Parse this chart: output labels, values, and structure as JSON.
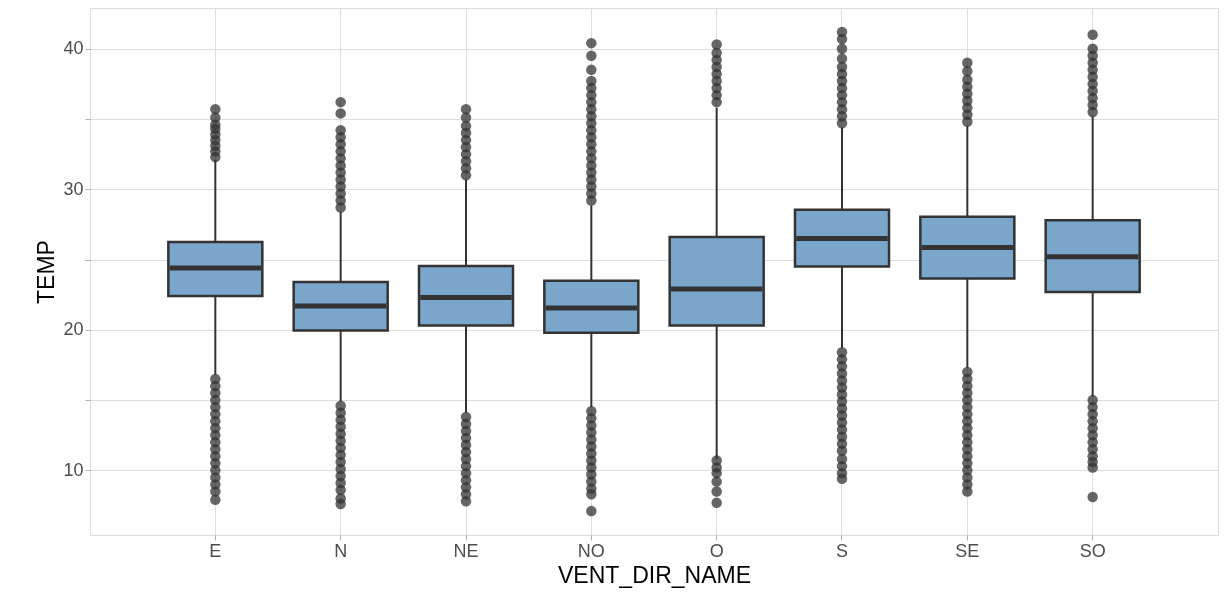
{
  "chart_data": {
    "type": "box",
    "xlabel": "VENT_DIR_NAME",
    "ylabel": "TEMP",
    "categories": [
      "E",
      "N",
      "NE",
      "NO",
      "O",
      "S",
      "SE",
      "SO"
    ],
    "ylim": [
      5.4,
      42.9
    ],
    "yticks": [
      {
        "value": 10,
        "label": "10"
      },
      {
        "value": 15,
        "label": null
      },
      {
        "value": 20,
        "label": "20"
      },
      {
        "value": 25,
        "label": null
      },
      {
        "value": 30,
        "label": "30"
      },
      {
        "value": 35,
        "label": null
      },
      {
        "value": 40,
        "label": "40"
      }
    ],
    "grid": true,
    "series": [
      {
        "color": "#7ba6cc",
        "boxes": [
          {
            "low": 16.8,
            "q1": 22.4,
            "median": 24.4,
            "q3": 26.25,
            "high": 32.1,
            "outliers": [
              32.3,
              32.7,
              33.1,
              33.5,
              33.9,
              34.3,
              34.6,
              35.1,
              35.7,
              16.5,
              16.0,
              15.5,
              15.0,
              14.5,
              14.0,
              13.5,
              13.0,
              12.5,
              12.0,
              11.5,
              11.0,
              10.5,
              10.0,
              9.5,
              9.0,
              8.5,
              7.9
            ]
          },
          {
            "low": 14.9,
            "q1": 19.95,
            "median": 21.7,
            "q3": 23.4,
            "high": 28.4,
            "outliers": [
              28.7,
              29.2,
              29.7,
              30.2,
              30.7,
              31.2,
              31.7,
              32.2,
              32.7,
              33.2,
              33.7,
              34.2,
              35.4,
              36.2,
              14.6,
              14.1,
              13.6,
              13.1,
              12.6,
              12.1,
              11.6,
              11.1,
              10.6,
              10.1,
              9.6,
              9.1,
              8.6,
              8.0,
              7.6
            ]
          },
          {
            "low": 14.1,
            "q1": 20.3,
            "median": 22.3,
            "q3": 24.55,
            "high": 30.7,
            "outliers": [
              31.0,
              31.5,
              32.0,
              32.5,
              33.0,
              33.5,
              34.0,
              34.5,
              35.1,
              35.7,
              13.8,
              13.3,
              12.8,
              12.3,
              11.8,
              11.3,
              10.8,
              10.3,
              9.8,
              9.3,
              8.8,
              8.3,
              7.8
            ]
          },
          {
            "low": 14.5,
            "q1": 19.8,
            "median": 21.55,
            "q3": 23.5,
            "high": 28.85,
            "outliers": [
              29.2,
              29.7,
              30.2,
              30.7,
              31.2,
              31.7,
              32.2,
              32.7,
              33.2,
              33.7,
              34.2,
              34.7,
              35.2,
              35.7,
              36.2,
              36.7,
              37.2,
              37.7,
              38.5,
              39.5,
              40.4,
              14.2,
              13.7,
              13.2,
              12.7,
              12.2,
              11.7,
              11.2,
              10.7,
              10.2,
              9.7,
              9.2,
              8.7,
              8.3,
              7.1
            ]
          },
          {
            "low": 10.8,
            "q1": 20.3,
            "median": 22.9,
            "q3": 26.6,
            "high": 35.8,
            "outliers": [
              36.2,
              36.7,
              37.2,
              37.7,
              38.2,
              38.7,
              39.2,
              39.7,
              40.3,
              10.7,
              10.2,
              9.8,
              9.2,
              8.5,
              7.7
            ]
          },
          {
            "low": 18.7,
            "q1": 24.5,
            "median": 26.5,
            "q3": 28.55,
            "high": 34.4,
            "outliers": [
              34.7,
              35.2,
              35.7,
              36.2,
              36.7,
              37.2,
              37.7,
              38.2,
              38.7,
              39.3,
              40.0,
              40.7,
              41.2,
              18.4,
              17.9,
              17.4,
              16.9,
              16.4,
              15.9,
              15.4,
              14.9,
              14.4,
              13.9,
              13.4,
              12.9,
              12.4,
              11.9,
              11.4,
              10.8,
              10.3,
              9.8,
              9.4
            ]
          },
          {
            "low": 17.3,
            "q1": 23.65,
            "median": 25.85,
            "q3": 28.05,
            "high": 34.5,
            "outliers": [
              34.8,
              35.3,
              35.8,
              36.3,
              36.8,
              37.3,
              37.8,
              38.4,
              39.0,
              17.0,
              16.5,
              16.0,
              15.5,
              15.0,
              14.5,
              14.0,
              13.5,
              13.0,
              12.5,
              12.0,
              11.5,
              11.0,
              10.5,
              10.0,
              9.5,
              9.0,
              8.5
            ]
          },
          {
            "low": 15.25,
            "q1": 22.7,
            "median": 25.2,
            "q3": 27.8,
            "high": 35.2,
            "outliers": [
              35.5,
              36.0,
              36.5,
              37.0,
              37.5,
              38.0,
              38.5,
              39.0,
              39.5,
              40.0,
              41.0,
              15.0,
              14.5,
              14.0,
              13.5,
              13.0,
              12.5,
              12.0,
              11.5,
              11.0,
              10.6,
              10.2,
              8.1
            ]
          }
        ]
      }
    ]
  }
}
